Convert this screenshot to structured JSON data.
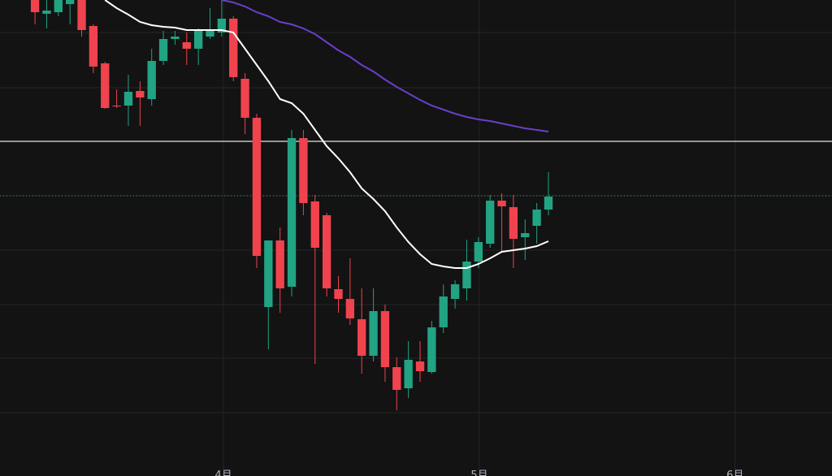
{
  "chart_data": {
    "type": "candlestick",
    "x": [
      0,
      1,
      2,
      3,
      4,
      5,
      6,
      7,
      8,
      9,
      10,
      11,
      12,
      13,
      14,
      15,
      16,
      17,
      18,
      19,
      20,
      21,
      22,
      23,
      24,
      25,
      26,
      27,
      28,
      29,
      30,
      31,
      32,
      33,
      34,
      35,
      36,
      37,
      38,
      39,
      40,
      41,
      42,
      43,
      44
    ],
    "open": [
      586,
      569,
      571,
      581,
      586,
      554,
      508,
      456,
      456,
      474,
      464,
      511,
      538,
      534,
      526,
      541,
      546,
      563,
      489,
      441,
      208,
      290,
      233,
      416,
      338,
      321,
      230,
      218,
      193,
      148,
      203,
      134,
      108,
      141,
      128,
      183,
      218,
      231,
      264,
      286,
      339,
      331,
      294,
      308,
      328
    ],
    "high": [
      586,
      586,
      586,
      586,
      586,
      556,
      510,
      476,
      494,
      486,
      526,
      548,
      548,
      546,
      551,
      576,
      586,
      566,
      496,
      446,
      290,
      306,
      426,
      426,
      346,
      324,
      246,
      268,
      231,
      231,
      211,
      146,
      166,
      166,
      191,
      236,
      241,
      291,
      294,
      346,
      348,
      346,
      316,
      336,
      374
    ],
    "low": [
      556,
      551,
      566,
      556,
      541,
      496,
      452,
      453,
      431,
      431,
      456,
      506,
      531,
      506,
      506,
      538,
      541,
      486,
      421,
      256,
      156,
      201,
      221,
      321,
      138,
      221,
      201,
      186,
      126,
      141,
      116,
      81,
      96,
      116,
      126,
      176,
      206,
      216,
      256,
      281,
      276,
      256,
      266,
      286,
      321
    ],
    "close": [
      571,
      573,
      586,
      586,
      549,
      504,
      453,
      455,
      473,
      466,
      511,
      538,
      541,
      526,
      548,
      548,
      563,
      491,
      441,
      271,
      290,
      231,
      416,
      336,
      281,
      231,
      218,
      194,
      148,
      203,
      134,
      106,
      143,
      129,
      183,
      221,
      236,
      264,
      288,
      339,
      332,
      292,
      299,
      328,
      344
    ],
    "up_color": "#22a383",
    "down_color": "#f0434e",
    "lines": [
      {
        "color": "#ffffff",
        "values": [
          null,
          null,
          null,
          null,
          null,
          null,
          586,
          576,
          568,
          559,
          555,
          553,
          552,
          549,
          549,
          549,
          549,
          546,
          526,
          506,
          486,
          464,
          459,
          446,
          426,
          406,
          391,
          374,
          354,
          341,
          326,
          306,
          288,
          273,
          261,
          258,
          256,
          256,
          261,
          268,
          276,
          278,
          280,
          283,
          289
        ]
      },
      {
        "color": "#6a3fc8",
        "values": [
          null,
          null,
          null,
          null,
          null,
          null,
          null,
          null,
          null,
          null,
          null,
          null,
          null,
          null,
          null,
          null,
          586,
          583,
          578,
          571,
          566,
          559,
          556,
          551,
          544,
          534,
          524,
          516,
          506,
          498,
          488,
          479,
          471,
          463,
          456,
          451,
          446,
          442,
          439,
          437,
          434,
          431,
          428,
          426,
          424
        ]
      }
    ],
    "hlines": [
      {
        "value": 412,
        "color": "#e6e6e6",
        "dash": false
      },
      {
        "value": 345,
        "color": "#22a383",
        "dash": true
      }
    ],
    "xlim": [
      -3,
      68.3
    ],
    "ylim": [
      0,
      586
    ],
    "xticks": [
      {
        "value": 16.15,
        "label": "4月"
      },
      {
        "value": 38.08,
        "label": "5月"
      },
      {
        "value": 60,
        "label": "6月"
      }
    ],
    "yticks": [
      78,
      145,
      211,
      278,
      345,
      412,
      478,
      546
    ],
    "grid": true
  }
}
